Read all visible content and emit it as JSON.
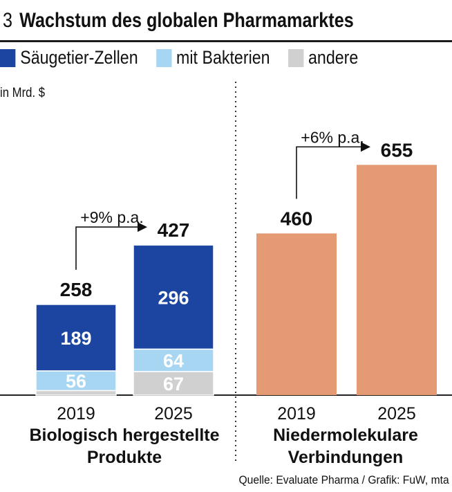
{
  "header": {
    "number": "3",
    "title": "Wachstum des globalen Pharmamarktes"
  },
  "legend": [
    {
      "label": "Säugetier-Zellen",
      "color": "#1b45a0"
    },
    {
      "label": "mit Bakterien",
      "color": "#a6d6f1"
    },
    {
      "label": "andere",
      "color": "#d0d0d0"
    }
  ],
  "unit_label": "in Mrd. $",
  "source": "Quelle: Evaluate Pharma / Grafik: FuW, mta",
  "chart_data": [
    {
      "type": "bar",
      "stacked": true,
      "group_label": [
        "Biologisch hergestellte",
        "Produkte"
      ],
      "categories": [
        "2019",
        "2025"
      ],
      "series": [
        {
          "name": "andere",
          "color": "#d0d0d0",
          "values": [
            13,
            67
          ],
          "labels": [
            "",
            "67"
          ]
        },
        {
          "name": "mit Bakterien",
          "color": "#a6d6f1",
          "values": [
            56,
            64
          ],
          "labels": [
            "56",
            "64"
          ]
        },
        {
          "name": "Säugetier-Zellen",
          "color": "#1b45a0",
          "values": [
            189,
            296
          ],
          "labels": [
            "189",
            "296"
          ]
        }
      ],
      "totals": [
        258,
        427
      ],
      "total_labels": [
        "258",
        "427"
      ],
      "growth": "+9% p.a.",
      "ylim": [
        0,
        700
      ]
    },
    {
      "type": "bar",
      "group_label": [
        "Niedermolekulare",
        "Verbindungen"
      ],
      "categories": [
        "2019",
        "2025"
      ],
      "series": [
        {
          "name": "Niedermolekulare Verbindungen",
          "color": "#e49b73",
          "values": [
            460,
            655
          ]
        }
      ],
      "totals": [
        460,
        655
      ],
      "total_labels": [
        "460",
        "655"
      ],
      "growth": "+6% p.a.",
      "ylim": [
        0,
        700
      ]
    }
  ]
}
